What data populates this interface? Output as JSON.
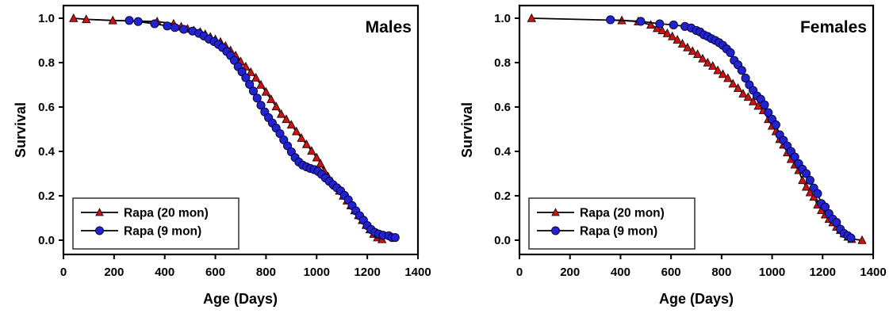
{
  "chart_data": [
    {
      "type": "line",
      "id": "males",
      "title": "Males",
      "xlabel": "Age (Days)",
      "ylabel": "Survival",
      "xlim": [
        0,
        1400
      ],
      "ylim": [
        0.0,
        1.0
      ],
      "xticks": [
        0,
        200,
        400,
        600,
        800,
        1000,
        1200,
        1400
      ],
      "xtick_labels": [
        "0",
        "200",
        "400",
        "600",
        "800",
        "1000",
        "1200",
        "1400"
      ],
      "yticks": [
        0.0,
        0.2,
        0.4,
        0.6,
        0.8,
        1.0
      ],
      "ytick_labels": [
        "0.0",
        "0.2",
        "0.4",
        "0.6",
        "0.8",
        "1.0"
      ],
      "grid": false,
      "legend_position": "lower-left",
      "line_color": "#000000",
      "series": [
        {
          "name": "Rapa (20 mon)",
          "marker": "triangle-up",
          "color": "#cc1212",
          "edge": "#230000",
          "points": [
            [
              40,
              1.0
            ],
            [
              90,
              0.995
            ],
            [
              195,
              0.99
            ],
            [
              370,
              0.985
            ],
            [
              435,
              0.975
            ],
            [
              465,
              0.962
            ],
            [
              490,
              0.952
            ],
            [
              515,
              0.945
            ],
            [
              540,
              0.938
            ],
            [
              560,
              0.928
            ],
            [
              580,
              0.916
            ],
            [
              600,
              0.905
            ],
            [
              620,
              0.893
            ],
            [
              640,
              0.875
            ],
            [
              660,
              0.855
            ],
            [
              680,
              0.832
            ],
            [
              700,
              0.805
            ],
            [
              720,
              0.782
            ],
            [
              740,
              0.757
            ],
            [
              760,
              0.732
            ],
            [
              780,
              0.7
            ],
            [
              800,
              0.668
            ],
            [
              820,
              0.635
            ],
            [
              840,
              0.602
            ],
            [
              860,
              0.568
            ],
            [
              880,
              0.545
            ],
            [
              900,
              0.52
            ],
            [
              920,
              0.49
            ],
            [
              940,
              0.46
            ],
            [
              960,
              0.432
            ],
            [
              980,
              0.402
            ],
            [
              1000,
              0.372
            ],
            [
              1015,
              0.345
            ],
            [
              1030,
              0.312
            ],
            [
              1045,
              0.287
            ],
            [
              1060,
              0.265
            ],
            [
              1075,
              0.245
            ],
            [
              1090,
              0.222
            ],
            [
              1105,
              0.2
            ],
            [
              1120,
              0.178
            ],
            [
              1135,
              0.156
            ],
            [
              1150,
              0.134
            ],
            [
              1165,
              0.112
            ],
            [
              1180,
              0.09
            ],
            [
              1195,
              0.068
            ],
            [
              1210,
              0.048
            ],
            [
              1225,
              0.028
            ],
            [
              1240,
              0.012
            ],
            [
              1258,
              0.004
            ]
          ],
          "open_marker": [
            1249,
            0.022
          ]
        },
        {
          "name": "Rapa (9 mon)",
          "marker": "circle",
          "color": "#2222d0",
          "edge": "#00002e",
          "points": [
            [
              260,
              0.99
            ],
            [
              295,
              0.985
            ],
            [
              360,
              0.975
            ],
            [
              410,
              0.965
            ],
            [
              440,
              0.958
            ],
            [
              475,
              0.95
            ],
            [
              510,
              0.942
            ],
            [
              535,
              0.932
            ],
            [
              555,
              0.92
            ],
            [
              575,
              0.906
            ],
            [
              595,
              0.895
            ],
            [
              612,
              0.882
            ],
            [
              628,
              0.868
            ],
            [
              645,
              0.85
            ],
            [
              660,
              0.832
            ],
            [
              675,
              0.81
            ],
            [
              690,
              0.782
            ],
            [
              705,
              0.758
            ],
            [
              720,
              0.732
            ],
            [
              735,
              0.702
            ],
            [
              750,
              0.672
            ],
            [
              765,
              0.64
            ],
            [
              780,
              0.608
            ],
            [
              795,
              0.578
            ],
            [
              810,
              0.552
            ],
            [
              825,
              0.528
            ],
            [
              840,
              0.505
            ],
            [
              855,
              0.48
            ],
            [
              870,
              0.452
            ],
            [
              885,
              0.425
            ],
            [
              900,
              0.398
            ],
            [
              915,
              0.372
            ],
            [
              930,
              0.352
            ],
            [
              945,
              0.338
            ],
            [
              960,
              0.33
            ],
            [
              975,
              0.323
            ],
            [
              990,
              0.318
            ],
            [
              1005,
              0.31
            ],
            [
              1020,
              0.296
            ],
            [
              1035,
              0.28
            ],
            [
              1050,
              0.265
            ],
            [
              1065,
              0.25
            ],
            [
              1080,
              0.236
            ],
            [
              1095,
              0.222
            ],
            [
              1110,
              0.202
            ],
            [
              1125,
              0.182
            ],
            [
              1140,
              0.156
            ],
            [
              1155,
              0.132
            ],
            [
              1170,
              0.11
            ],
            [
              1185,
              0.09
            ],
            [
              1200,
              0.066
            ],
            [
              1215,
              0.048
            ],
            [
              1230,
              0.035
            ],
            [
              1245,
              0.028
            ],
            [
              1262,
              0.022
            ],
            [
              1285,
              0.02
            ],
            [
              1298,
              0.012
            ],
            [
              1310,
              0.012
            ]
          ]
        }
      ]
    },
    {
      "type": "line",
      "id": "females",
      "title": "Females",
      "xlabel": "Age (Days)",
      "ylabel": "Survival",
      "xlim": [
        0,
        1400
      ],
      "ylim": [
        0.0,
        1.0
      ],
      "xticks": [
        0,
        200,
        400,
        600,
        800,
        1000,
        1200,
        1400
      ],
      "xtick_labels": [
        "0",
        "200",
        "400",
        "600",
        "800",
        "1000",
        "1200",
        "1400"
      ],
      "yticks": [
        0.0,
        0.2,
        0.4,
        0.6,
        0.8,
        1.0
      ],
      "ytick_labels": [
        "0.0",
        "0.2",
        "0.4",
        "0.6",
        "0.8",
        "1.0"
      ],
      "grid": false,
      "legend_position": "lower-left",
      "line_color": "#000000",
      "series": [
        {
          "name": "Rapa (20 mon)",
          "marker": "triangle-up",
          "color": "#cc1212",
          "edge": "#230000",
          "points": [
            [
              48,
              1.0
            ],
            [
              405,
              0.99
            ],
            [
              470,
              0.985
            ],
            [
              520,
              0.97
            ],
            [
              545,
              0.955
            ],
            [
              565,
              0.945
            ],
            [
              585,
              0.932
            ],
            [
              605,
              0.918
            ],
            [
              625,
              0.903
            ],
            [
              645,
              0.885
            ],
            [
              665,
              0.868
            ],
            [
              685,
              0.852
            ],
            [
              705,
              0.838
            ],
            [
              725,
              0.818
            ],
            [
              745,
              0.8
            ],
            [
              765,
              0.785
            ],
            [
              785,
              0.765
            ],
            [
              805,
              0.748
            ],
            [
              825,
              0.73
            ],
            [
              845,
              0.705
            ],
            [
              865,
              0.685
            ],
            [
              885,
              0.66
            ],
            [
              905,
              0.645
            ],
            [
              925,
              0.625
            ],
            [
              945,
              0.605
            ],
            [
              965,
              0.585
            ],
            [
              985,
              0.545
            ],
            [
              1000,
              0.515
            ],
            [
              1015,
              0.49
            ],
            [
              1030,
              0.455
            ],
            [
              1045,
              0.43
            ],
            [
              1060,
              0.395
            ],
            [
              1075,
              0.365
            ],
            [
              1090,
              0.34
            ],
            [
              1105,
              0.315
            ],
            [
              1120,
              0.27
            ],
            [
              1135,
              0.24
            ],
            [
              1150,
              0.215
            ],
            [
              1165,
              0.195
            ],
            [
              1180,
              0.16
            ],
            [
              1195,
              0.135
            ],
            [
              1210,
              0.115
            ],
            [
              1225,
              0.095
            ],
            [
              1240,
              0.08
            ],
            [
              1255,
              0.06
            ],
            [
              1270,
              0.045
            ],
            [
              1285,
              0.03
            ],
            [
              1300,
              0.015
            ],
            [
              1315,
              0.005
            ],
            [
              1356,
              0.0
            ]
          ]
        },
        {
          "name": "Rapa (9 mon)",
          "marker": "circle",
          "color": "#2222d0",
          "edge": "#00002e",
          "points": [
            [
              360,
              0.993
            ],
            [
              480,
              0.986
            ],
            [
              555,
              0.975
            ],
            [
              610,
              0.97
            ],
            [
              655,
              0.963
            ],
            [
              680,
              0.956
            ],
            [
              700,
              0.945
            ],
            [
              715,
              0.938
            ],
            [
              730,
              0.925
            ],
            [
              745,
              0.918
            ],
            [
              760,
              0.908
            ],
            [
              775,
              0.9
            ],
            [
              790,
              0.89
            ],
            [
              805,
              0.878
            ],
            [
              820,
              0.862
            ],
            [
              835,
              0.845
            ],
            [
              850,
              0.81
            ],
            [
              865,
              0.79
            ],
            [
              880,
              0.765
            ],
            [
              895,
              0.73
            ],
            [
              910,
              0.7
            ],
            [
              925,
              0.675
            ],
            [
              940,
              0.65
            ],
            [
              955,
              0.635
            ],
            [
              970,
              0.61
            ],
            [
              985,
              0.575
            ],
            [
              1000,
              0.545
            ],
            [
              1015,
              0.52
            ],
            [
              1030,
              0.475
            ],
            [
              1045,
              0.45
            ],
            [
              1060,
              0.425
            ],
            [
              1075,
              0.4
            ],
            [
              1090,
              0.375
            ],
            [
              1105,
              0.345
            ],
            [
              1120,
              0.32
            ],
            [
              1135,
              0.3
            ],
            [
              1150,
              0.27
            ],
            [
              1165,
              0.235
            ],
            [
              1180,
              0.21
            ],
            [
              1195,
              0.165
            ],
            [
              1210,
              0.15
            ],
            [
              1225,
              0.12
            ],
            [
              1240,
              0.095
            ],
            [
              1255,
              0.08
            ],
            [
              1270,
              0.05
            ],
            [
              1285,
              0.03
            ],
            [
              1300,
              0.02
            ],
            [
              1312,
              0.01
            ]
          ]
        }
      ]
    }
  ]
}
